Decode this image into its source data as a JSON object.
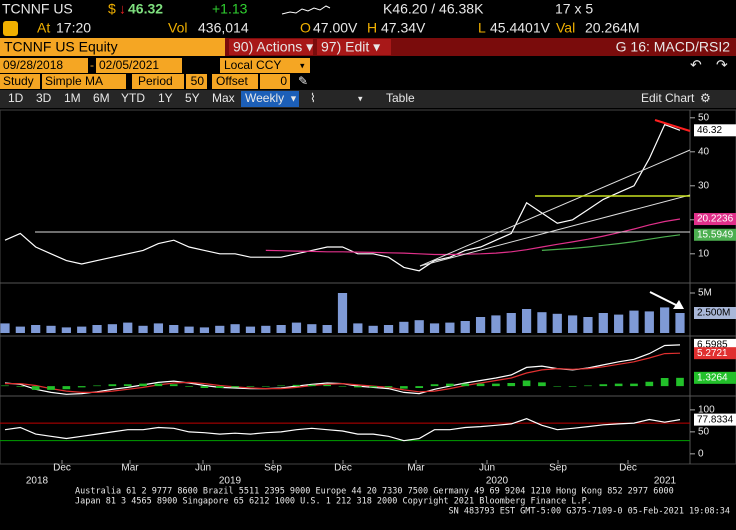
{
  "header": {
    "ticker": "TCNNF US",
    "currency": "$",
    "last": "46.32",
    "change": "+1.13",
    "bid_ask": "K46.20 / 46.38K",
    "size": "17 x 5",
    "at_label": "At",
    "time": "17:20",
    "vol_label": "Vol",
    "volume": "436,014",
    "open_label": "O",
    "open": "47.00V",
    "high_label": "H",
    "high": "47.34V",
    "low_label": "L",
    "low": "45.4401V",
    "val_label": "Val",
    "value": "20.264M"
  },
  "command": {
    "security": "TCNNF US Equity",
    "actions": "90) Actions ▾",
    "edit": "97) Edit ▾",
    "screen": "G 16: MACD/RSI2"
  },
  "settings": {
    "start": "09/28/2018",
    "dash": "-",
    "end": "02/05/2021",
    "currency": "Local CCY",
    "study_label": "Study",
    "study": "Simple MA",
    "period_label": "Period",
    "period": "50",
    "offset_label": "Offset",
    "offset": "0"
  },
  "toolbar": {
    "ranges": [
      "1D",
      "3D",
      "1M",
      "6M",
      "YTD",
      "1Y",
      "5Y",
      "Max"
    ],
    "frequency": "Weekly",
    "table": "Table",
    "edit_chart": "Edit Chart"
  },
  "x_axis": {
    "months": [
      "Dec",
      "Mar",
      "Jun",
      "Sep",
      "Dec",
      "Mar",
      "Jun",
      "Sep",
      "Dec"
    ],
    "years": [
      "2018",
      "2019",
      "2020",
      "2021"
    ]
  },
  "chart_data": [
    {
      "type": "line",
      "ylim": [
        2,
        52
      ],
      "yticks": [
        10,
        20,
        30,
        40,
        50
      ],
      "series": [
        {
          "color": "#ffffff",
          "values": [
            14,
            16,
            12,
            10,
            8,
            7,
            8,
            9,
            10,
            11,
            13,
            14,
            12,
            11,
            10,
            10,
            9,
            9,
            9,
            10,
            11,
            12,
            12,
            10,
            10,
            9,
            6,
            5,
            8,
            9,
            11,
            12,
            14,
            16,
            25,
            22,
            19,
            20,
            23,
            26,
            28,
            30,
            38,
            48,
            46.32
          ]
        },
        {
          "color": "#e0308a",
          "values": [
            null,
            null,
            null,
            null,
            null,
            null,
            null,
            null,
            null,
            null,
            null,
            null,
            null,
            null,
            null,
            null,
            null,
            11,
            10.9,
            10.8,
            10.7,
            10.6,
            10.6,
            10.5,
            10.4,
            10.3,
            10.2,
            10,
            9.8,
            9.8,
            9.9,
            10,
            10.2,
            10.6,
            11.2,
            12,
            12.8,
            13.5,
            14.3,
            15.2,
            16.2,
            17.3,
            18.5,
            19.5,
            20.2236
          ]
        },
        {
          "color": "#4caf50",
          "values": [
            null,
            null,
            null,
            null,
            null,
            null,
            null,
            null,
            null,
            null,
            null,
            null,
            null,
            null,
            null,
            null,
            null,
            null,
            null,
            null,
            null,
            null,
            null,
            null,
            null,
            null,
            null,
            null,
            null,
            null,
            null,
            null,
            null,
            null,
            null,
            11,
            11.3,
            11.6,
            12,
            12.5,
            13,
            13.6,
            14.3,
            15,
            15.5949
          ]
        }
      ]
    },
    {
      "type": "bar",
      "ylim": [
        0,
        6
      ],
      "yticks": [
        {
          "value": 5,
          "label": "5M"
        }
      ],
      "color": "#7f9ad6",
      "values": [
        1.2,
        0.8,
        1,
        0.9,
        0.7,
        0.8,
        1,
        1.1,
        1.3,
        0.9,
        1.2,
        1,
        0.8,
        0.7,
        0.9,
        1.1,
        0.8,
        0.9,
        1,
        1.3,
        1.1,
        1,
        5,
        1.2,
        0.9,
        1,
        1.4,
        1.6,
        1.2,
        1.3,
        1.5,
        2,
        2.2,
        2.5,
        3,
        2.6,
        2.4,
        2.2,
        2,
        2.5,
        2.3,
        2.8,
        2.7,
        3.2,
        2.5
      ],
      "value_labels": [
        null,
        null,
        null,
        null,
        null,
        null,
        null,
        null,
        null,
        null,
        null,
        null,
        null,
        null,
        null,
        null,
        null,
        null,
        null,
        null,
        null,
        null,
        null,
        null,
        null,
        null,
        null,
        null,
        null,
        null,
        null,
        null,
        null,
        null,
        null,
        null,
        null,
        null,
        null,
        null,
        null,
        null,
        null,
        null,
        "2.500M"
      ]
    },
    {
      "type": "line",
      "ylim": [
        -1.1,
        7.7
      ],
      "series": [
        {
          "color": "#ffffff",
          "values": [
            0.5,
            0.3,
            -0.5,
            -1,
            -1.3,
            -1.2,
            -0.9,
            -0.5,
            -0.2,
            0.2,
            0.6,
            0.8,
            0.5,
            0.1,
            -0.2,
            -0.3,
            -0.4,
            -0.4,
            -0.3,
            0,
            0.3,
            0.5,
            0.4,
            0,
            -0.2,
            -0.4,
            -1,
            -1.2,
            -0.5,
            0,
            0.5,
            0.9,
            1.3,
            1.8,
            3,
            3.2,
            2.8,
            2.6,
            2.9,
            3.4,
            3.9,
            4.3,
            5.2,
            6.5,
            6.5985
          ]
        },
        {
          "color": "#e03030",
          "values": [
            0.4,
            0.4,
            0.1,
            -0.4,
            -0.8,
            -1,
            -1,
            -0.8,
            -0.5,
            -0.2,
            0.2,
            0.5,
            0.6,
            0.4,
            0.1,
            -0.1,
            -0.3,
            -0.4,
            -0.4,
            -0.2,
            0.1,
            0.3,
            0.4,
            0.2,
            0,
            -0.2,
            -0.6,
            -0.9,
            -0.8,
            -0.4,
            0.1,
            0.5,
            0.9,
            1.3,
            2.1,
            2.6,
            2.8,
            2.7,
            2.8,
            3.1,
            3.5,
            3.9,
            4.5,
            5.2,
            5.2721
          ]
        },
        {
          "color": "#22c02a",
          "type": "bar",
          "values": [
            0.1,
            -0.1,
            -0.6,
            -0.6,
            -0.5,
            -0.2,
            0.1,
            0.3,
            0.3,
            0.4,
            0.4,
            0.3,
            -0.1,
            -0.3,
            -0.3,
            -0.2,
            -0.1,
            0,
            0.1,
            0.2,
            0.2,
            0.2,
            0,
            -0.2,
            -0.2,
            -0.2,
            -0.4,
            -0.3,
            0.3,
            0.4,
            0.4,
            0.4,
            0.4,
            0.5,
            0.9,
            0.6,
            0,
            -0.1,
            0.1,
            0.3,
            0.4,
            0.4,
            0.7,
            1.3,
            1.3264
          ]
        }
      ]
    },
    {
      "type": "line",
      "ylim": [
        -14,
        127
      ],
      "yticks": [
        0,
        50,
        100
      ],
      "reference_lines": [
        {
          "value": 70,
          "color": "#c00000"
        },
        {
          "value": 30,
          "color": "#00a000"
        }
      ],
      "series": [
        {
          "color": "#ffffff",
          "values": [
            55,
            60,
            45,
            40,
            35,
            40,
            45,
            50,
            55,
            55,
            60,
            58,
            50,
            48,
            45,
            47,
            45,
            48,
            50,
            55,
            58,
            55,
            52,
            45,
            45,
            40,
            30,
            35,
            55,
            55,
            60,
            62,
            65,
            68,
            80,
            65,
            55,
            58,
            62,
            66,
            68,
            70,
            78,
            72,
            77.8334
          ]
        }
      ]
    }
  ],
  "footer": {
    "line1": "Australia 61 2 9777 8600 Brazil 5511 2395 9000 Europe 44 20 7330 7500 Germany 49 69 9204 1210 Hong Kong 852 2977 6000",
    "line2": "Japan 81 3 4565 8900       Singapore 65 6212 1000       U.S. 1 212 318 2000       Copyright 2021 Bloomberg Finance L.P.",
    "line3": "SN 483793 EST  GMT-5:00 G375-7109-0 05-Feb-2021 19:08:34"
  }
}
